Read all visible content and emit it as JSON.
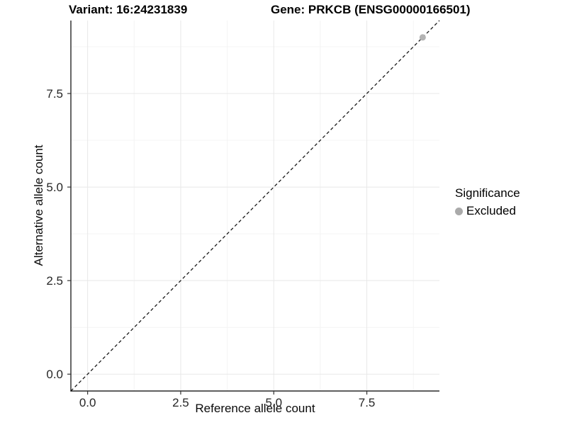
{
  "title": {
    "variant": "Variant: 16:24231839",
    "gene": "Gene: PRKCB (ENSG00000166501)"
  },
  "axes": {
    "x_label": "Reference allele count",
    "y_label": "Alternative allele count"
  },
  "legend": {
    "title": "Significance",
    "entries": [
      {
        "label": "Excluded",
        "color": "#aaaaaa",
        "marker": "circle"
      }
    ],
    "position": "right"
  },
  "chart_data": {
    "type": "scatter",
    "title": "Variant: 16:24231839   Gene: PRKCB (ENSG00000166501)",
    "xlabel": "Reference allele count",
    "ylabel": "Alternative allele count",
    "xlim": [
      -0.45,
      9.45
    ],
    "ylim": [
      -0.45,
      9.45
    ],
    "x_major_ticks": [
      0,
      2.5,
      5,
      7.5
    ],
    "x_tick_labels": [
      "0.0",
      "2.5",
      "5.0",
      "7.5"
    ],
    "y_major_ticks": [
      0,
      2.5,
      5,
      7.5
    ],
    "y_tick_labels": [
      "0.0",
      "2.5",
      "5.0",
      "7.5"
    ],
    "x_minor_ticks": [
      1.25,
      3.75,
      6.25,
      8.75
    ],
    "y_minor_ticks": [
      1.25,
      3.75,
      6.25,
      8.75
    ],
    "grid": true,
    "identity_line": {
      "style": "dashed",
      "equation": "y = x",
      "from": [
        -0.45,
        -0.45
      ],
      "to": [
        9.45,
        9.45
      ],
      "color": "#1a1a1a"
    },
    "series": [
      {
        "name": "Excluded",
        "color": "#b3b3b3",
        "points": [
          [
            9,
            9
          ]
        ]
      }
    ],
    "legend_position": "right",
    "colors": {
      "grid_major": "#e8e8e8",
      "grid_minor": "#f4f4f4",
      "axis": "#000000",
      "tick_text": "#262626"
    }
  }
}
